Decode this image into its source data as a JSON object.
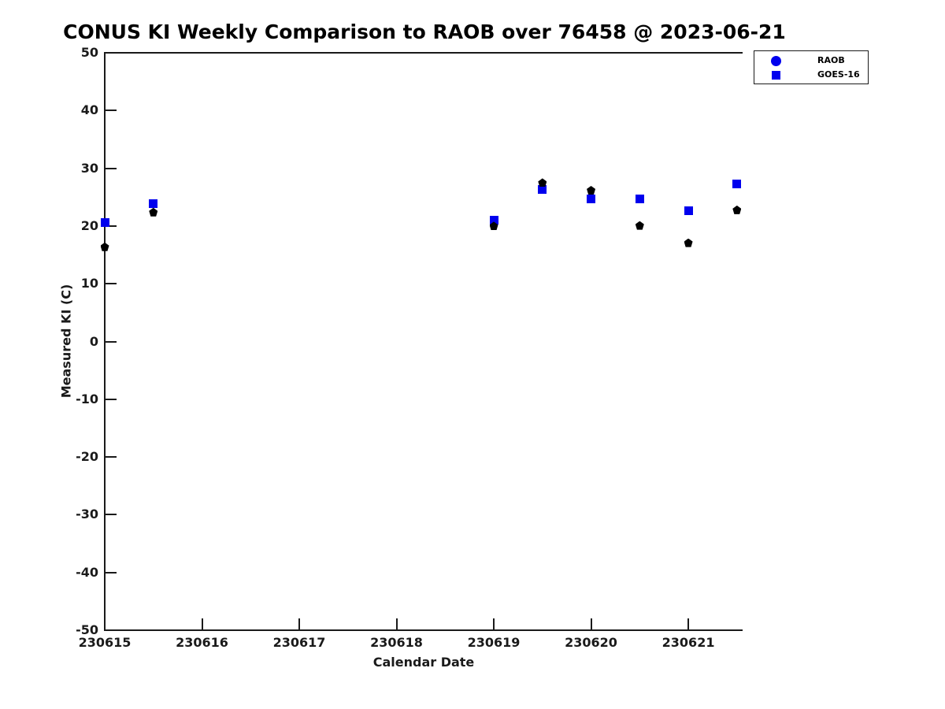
{
  "chart_data": {
    "type": "scatter",
    "title": "CONUS KI Weekly Comparison to RAOB over 76458 @ 2023-06-21",
    "xlabel": "Calendar Date",
    "ylabel": "Measured KI (C)",
    "x_unit": "days since 230615",
    "xlim": [
      0,
      6.55
    ],
    "ylim": [
      -50,
      50
    ],
    "x_ticks": [
      0,
      1,
      2,
      3,
      4,
      5,
      6
    ],
    "x_tick_labels": [
      "230615",
      "230616",
      "230617",
      "230618",
      "230619",
      "230620",
      "230621"
    ],
    "y_ticks": [
      50,
      40,
      30,
      20,
      10,
      0,
      -10,
      -20,
      -30,
      -40,
      -50
    ],
    "y_tick_labels": [
      "50",
      "40",
      "30",
      "20",
      "10",
      "0",
      "-10",
      "-20",
      "-30",
      "-40",
      "-50"
    ],
    "grid": false,
    "legend_position": "top-right",
    "series": [
      {
        "name": "GOES-16",
        "marker": "square",
        "color": "#0000ee",
        "points": [
          {
            "x": 0.0,
            "y": 20.6
          },
          {
            "x": 0.5,
            "y": 23.9
          },
          {
            "x": 4.0,
            "y": 21.0
          },
          {
            "x": 4.5,
            "y": 26.3
          },
          {
            "x": 5.0,
            "y": 24.7
          },
          {
            "x": 5.5,
            "y": 24.7
          },
          {
            "x": 6.0,
            "y": 22.6
          },
          {
            "x": 6.5,
            "y": 27.3
          }
        ]
      },
      {
        "name": "RAOB",
        "marker": "pentagon",
        "color": "#000000",
        "points": [
          {
            "x": 0.0,
            "y": 16.4
          },
          {
            "x": 0.5,
            "y": 22.4
          },
          {
            "x": 4.0,
            "y": 20.0
          },
          {
            "x": 4.5,
            "y": 27.5
          },
          {
            "x": 5.0,
            "y": 26.2
          },
          {
            "x": 5.5,
            "y": 20.1
          },
          {
            "x": 6.0,
            "y": 17.1
          },
          {
            "x": 6.5,
            "y": 22.8
          }
        ]
      }
    ],
    "legend": [
      {
        "label": "RAOB",
        "marker": "circle",
        "color": "#0000ee"
      },
      {
        "label": "GOES-16",
        "marker": "square",
        "color": "#0000ee"
      }
    ]
  },
  "colors": {
    "background": "#ffffff",
    "axis": "#1a1a1a",
    "text": "#1a1a1a",
    "series_blue": "#0000ee",
    "series_black": "#000000"
  }
}
